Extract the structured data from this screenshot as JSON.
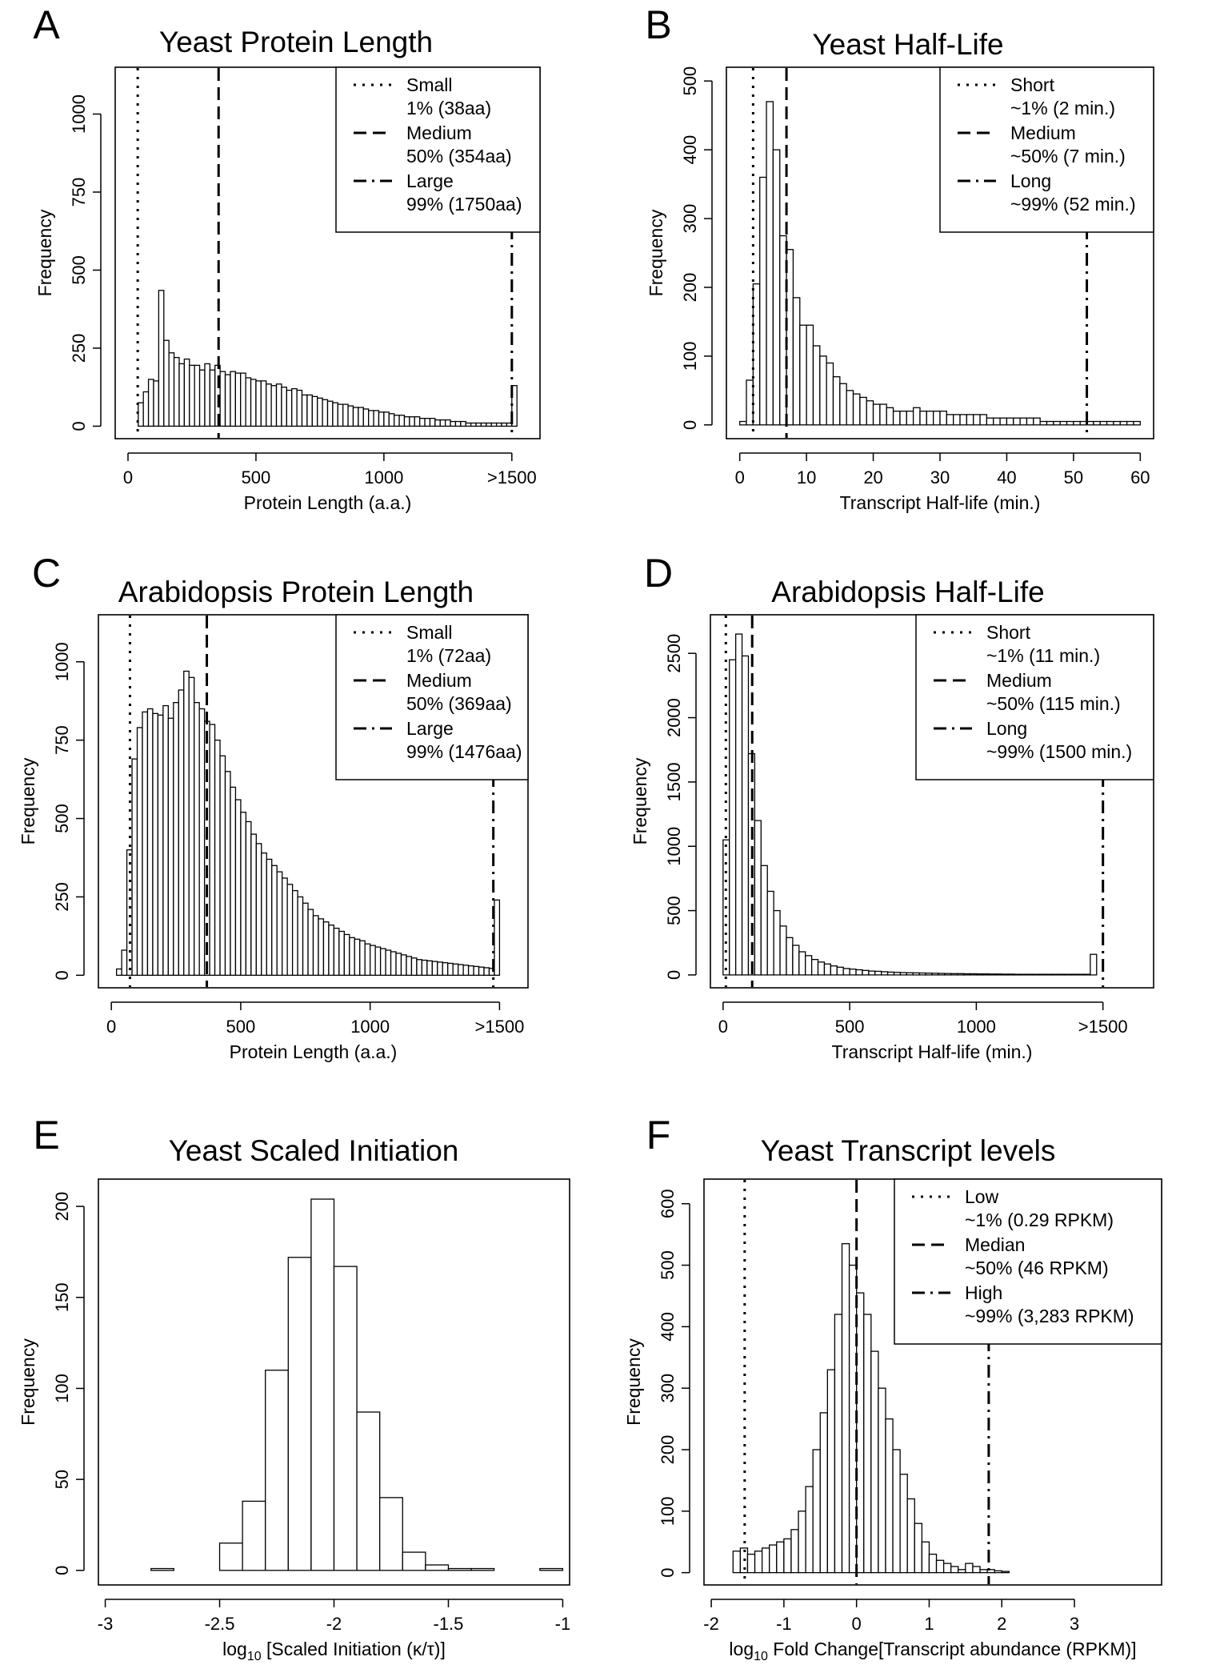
{
  "chart_data": [
    {
      "panel": "A",
      "type": "bar",
      "title": "Yeast Protein Length",
      "xlabel": "Protein Length (a.a.)",
      "ylabel": "Frequency",
      "xlim": [
        -50,
        1610
      ],
      "ylim": [
        -40,
        1150
      ],
      "x_ticks": [
        0,
        500,
        1000,
        1500
      ],
      "x_tick_labels": [
        "0",
        "500",
        "1000",
        ">1500"
      ],
      "y_ticks": [
        0,
        250,
        500,
        750,
        1000
      ],
      "y_tick_labels": [
        "0",
        "250",
        "500",
        "750",
        "1000"
      ],
      "bin_start": 0,
      "bin_width": 20,
      "values": [
        0,
        0,
        75,
        110,
        150,
        145,
        435,
        275,
        235,
        220,
        200,
        215,
        195,
        195,
        180,
        200,
        180,
        195,
        175,
        165,
        175,
        170,
        170,
        155,
        150,
        145,
        145,
        135,
        130,
        135,
        125,
        115,
        120,
        115,
        100,
        100,
        95,
        90,
        85,
        80,
        75,
        70,
        70,
        65,
        60,
        60,
        55,
        50,
        50,
        45,
        45,
        40,
        35,
        35,
        30,
        30,
        30,
        25,
        25,
        25,
        20,
        20,
        20,
        15,
        15,
        15,
        10,
        10,
        10,
        10,
        10,
        10,
        10,
        10,
        10,
        130
      ],
      "vlines": [
        {
          "x": 38,
          "style": "dotted"
        },
        {
          "x": 354,
          "style": "dashed"
        },
        {
          "x": 1500,
          "style": "dotdash"
        }
      ],
      "legend_position": "top-right",
      "legend": [
        {
          "name": "Small",
          "detail": "1% (38aa)",
          "style": "dotted"
        },
        {
          "name": "Medium",
          "detail": "50% (354aa)",
          "style": "dashed"
        },
        {
          "name": "Large",
          "detail": "99% (1750aa)",
          "style": "dotdash"
        }
      ]
    },
    {
      "panel": "B",
      "type": "bar",
      "title": "Yeast Half-Life",
      "xlabel": "Transcript Half-life (min.)",
      "ylabel": "Frequency",
      "xlim": [
        -2,
        62
      ],
      "ylim": [
        -20,
        520
      ],
      "x_ticks": [
        0,
        10,
        20,
        30,
        40,
        50,
        60
      ],
      "x_tick_labels": [
        "0",
        "10",
        "20",
        "30",
        "40",
        "50",
        "60"
      ],
      "y_ticks": [
        0,
        100,
        200,
        300,
        400,
        500
      ],
      "y_tick_labels": [
        "0",
        "100",
        "200",
        "300",
        "400",
        "500"
      ],
      "bin_start": 0,
      "bin_width": 1,
      "values": [
        5,
        65,
        205,
        360,
        470,
        400,
        275,
        255,
        185,
        145,
        145,
        115,
        100,
        90,
        70,
        60,
        50,
        45,
        40,
        35,
        30,
        30,
        25,
        20,
        20,
        20,
        25,
        20,
        20,
        20,
        20,
        15,
        15,
        15,
        15,
        15,
        15,
        10,
        10,
        10,
        10,
        10,
        10,
        10,
        10,
        5,
        5,
        5,
        5,
        5,
        5,
        5,
        5,
        5,
        5,
        5,
        5,
        5,
        5,
        5
      ],
      "vlines": [
        {
          "x": 2,
          "style": "dotted"
        },
        {
          "x": 7,
          "style": "dashed"
        },
        {
          "x": 52,
          "style": "dotdash"
        }
      ],
      "legend_position": "top-right",
      "legend": [
        {
          "name": "Short",
          "detail": "~1% (2 min.)",
          "style": "dotted"
        },
        {
          "name": "Medium",
          "detail": "~50% (7 min.)",
          "style": "dashed"
        },
        {
          "name": "Long",
          "detail": "~99% (52 min.)",
          "style": "dotdash"
        }
      ]
    },
    {
      "panel": "C",
      "type": "bar",
      "title": "Arabidopsis Protein Length",
      "xlabel": "Protein Length (a.a.)",
      "ylabel": "Frequency",
      "xlim": [
        -50,
        1610
      ],
      "ylim": [
        -40,
        1150
      ],
      "x_ticks": [
        0,
        500,
        1000,
        1500
      ],
      "x_tick_labels": [
        "0",
        "500",
        "1000",
        ">1500"
      ],
      "y_ticks": [
        0,
        250,
        500,
        750,
        1000
      ],
      "y_tick_labels": [
        "0",
        "250",
        "500",
        "750",
        "1000"
      ],
      "bin_start": 0,
      "bin_width": 20,
      "values": [
        0,
        20,
        80,
        400,
        690,
        790,
        840,
        850,
        835,
        830,
        860,
        820,
        870,
        910,
        970,
        950,
        870,
        850,
        810,
        800,
        750,
        700,
        650,
        600,
        560,
        520,
        490,
        450,
        420,
        390,
        370,
        350,
        330,
        310,
        290,
        270,
        250,
        230,
        210,
        190,
        180,
        170,
        160,
        150,
        140,
        130,
        120,
        115,
        110,
        100,
        95,
        90,
        85,
        80,
        75,
        70,
        65,
        60,
        55,
        50,
        48,
        46,
        44,
        42,
        40,
        38,
        36,
        34,
        32,
        30,
        28,
        26,
        24,
        22,
        240
      ],
      "vlines": [
        {
          "x": 72,
          "style": "dotted"
        },
        {
          "x": 369,
          "style": "dashed"
        },
        {
          "x": 1476,
          "style": "dotdash"
        }
      ],
      "legend_position": "top-right",
      "legend": [
        {
          "name": "Small",
          "detail": "1% (72aa)",
          "style": "dotted"
        },
        {
          "name": "Medium",
          "detail": "50% (369aa)",
          "style": "dashed"
        },
        {
          "name": "Large",
          "detail": "99% (1476aa)",
          "style": "dotdash"
        }
      ]
    },
    {
      "panel": "D",
      "type": "bar",
      "title": "Arabidopsis Half-Life",
      "xlabel": "Transcript Half-life (min.)",
      "ylabel": "Frequency",
      "xlim": [
        -50,
        1700
      ],
      "ylim": [
        -100,
        2800
      ],
      "x_ticks": [
        0,
        500,
        1000,
        1500
      ],
      "x_tick_labels": [
        "0",
        "500",
        "1000",
        ">1500"
      ],
      "y_ticks": [
        0,
        500,
        1000,
        1500,
        2000,
        2500
      ],
      "y_tick_labels": [
        "0",
        "500",
        "1000",
        "1500",
        "2000",
        "2500"
      ],
      "bin_start": 0,
      "bin_width": 25,
      "values": [
        1050,
        2450,
        2650,
        2480,
        1720,
        1200,
        850,
        650,
        500,
        380,
        290,
        230,
        180,
        150,
        120,
        100,
        85,
        70,
        60,
        50,
        45,
        40,
        35,
        30,
        28,
        25,
        22,
        20,
        18,
        17,
        16,
        15,
        14,
        13,
        12,
        11,
        10,
        10,
        9,
        9,
        8,
        8,
        7,
        7,
        6,
        6,
        5,
        5,
        5,
        5,
        5,
        5,
        5,
        5,
        5,
        5,
        5,
        5,
        160
      ],
      "vlines": [
        {
          "x": 11,
          "style": "dotted"
        },
        {
          "x": 115,
          "style": "dashed"
        },
        {
          "x": 1500,
          "style": "dotdash"
        }
      ],
      "legend_position": "top-right",
      "legend": [
        {
          "name": "Short",
          "detail": "~1% (11 min.)",
          "style": "dotted"
        },
        {
          "name": "Medium",
          "detail": "~50% (115 min.)",
          "style": "dashed"
        },
        {
          "name": "Long",
          "detail": "~99% (1500 min.)",
          "style": "dotdash"
        }
      ]
    },
    {
      "panel": "E",
      "type": "bar",
      "title": "Yeast Scaled Initiation",
      "xlabel_pre": "log",
      "xlabel_sub": "10",
      "xlabel_post": " [Scaled Initiation (κ/τ)]",
      "ylabel": "Frequency",
      "xlim": [
        -3.03,
        -0.97
      ],
      "ylim": [
        -8,
        215
      ],
      "x_ticks": [
        -3,
        -2.5,
        -2,
        -1.5,
        -1
      ],
      "x_tick_labels": [
        "-3",
        "-2.5",
        "-2",
        "-1.5",
        "-1"
      ],
      "y_ticks": [
        0,
        50,
        100,
        150,
        200
      ],
      "y_tick_labels": [
        "0",
        "50",
        "100",
        "150",
        "200"
      ],
      "bin_start": -3,
      "bin_width": 0.1,
      "values": [
        0,
        0,
        1,
        0,
        0,
        15,
        38,
        110,
        172,
        204,
        167,
        87,
        40,
        10,
        3,
        1,
        1,
        0,
        0,
        1
      ],
      "vlines": [],
      "legend": []
    },
    {
      "panel": "F",
      "type": "bar",
      "title": "Yeast Transcript levels",
      "xlabel_pre": "log",
      "xlabel_sub": "10",
      "xlabel_post": " Fold Change[Transcript abundance (RPKM)]",
      "ylabel": "Frequency",
      "xlim": [
        -2.1,
        4.2
      ],
      "ylim": [
        -20,
        640
      ],
      "x_ticks": [
        -2,
        -1,
        0,
        1,
        2,
        3
      ],
      "x_tick_labels": [
        "-2",
        "-1",
        "0",
        "1",
        "2",
        "3"
      ],
      "y_ticks": [
        0,
        100,
        200,
        300,
        400,
        500,
        600
      ],
      "y_tick_labels": [
        "0",
        "100",
        "200",
        "300",
        "400",
        "500",
        "600"
      ],
      "bin_start": -1.9,
      "bin_width": 0.1,
      "values": [
        0,
        0,
        35,
        40,
        30,
        35,
        40,
        45,
        50,
        55,
        70,
        100,
        140,
        200,
        260,
        330,
        420,
        535,
        500,
        455,
        420,
        360,
        300,
        250,
        200,
        160,
        120,
        80,
        50,
        30,
        20,
        15,
        10,
        5,
        15,
        10,
        5,
        5,
        3,
        2,
        0,
        0,
        0,
        0,
        0,
        0,
        0,
        0,
        0
      ],
      "vlines": [
        {
          "x": -1.54,
          "style": "dotted"
        },
        {
          "x": 0,
          "style": "dashed"
        },
        {
          "x": 1.82,
          "style": "dotdash"
        }
      ],
      "legend_position": "top-right",
      "legend": [
        {
          "name": "Low",
          "detail": "~1% (0.29 RPKM)",
          "style": "dotted"
        },
        {
          "name": "Median",
          "detail": "~50% (46 RPKM)",
          "style": "dashed"
        },
        {
          "name": "High",
          "detail": "~99% (3,283 RPKM)",
          "style": "dotdash"
        }
      ]
    }
  ]
}
